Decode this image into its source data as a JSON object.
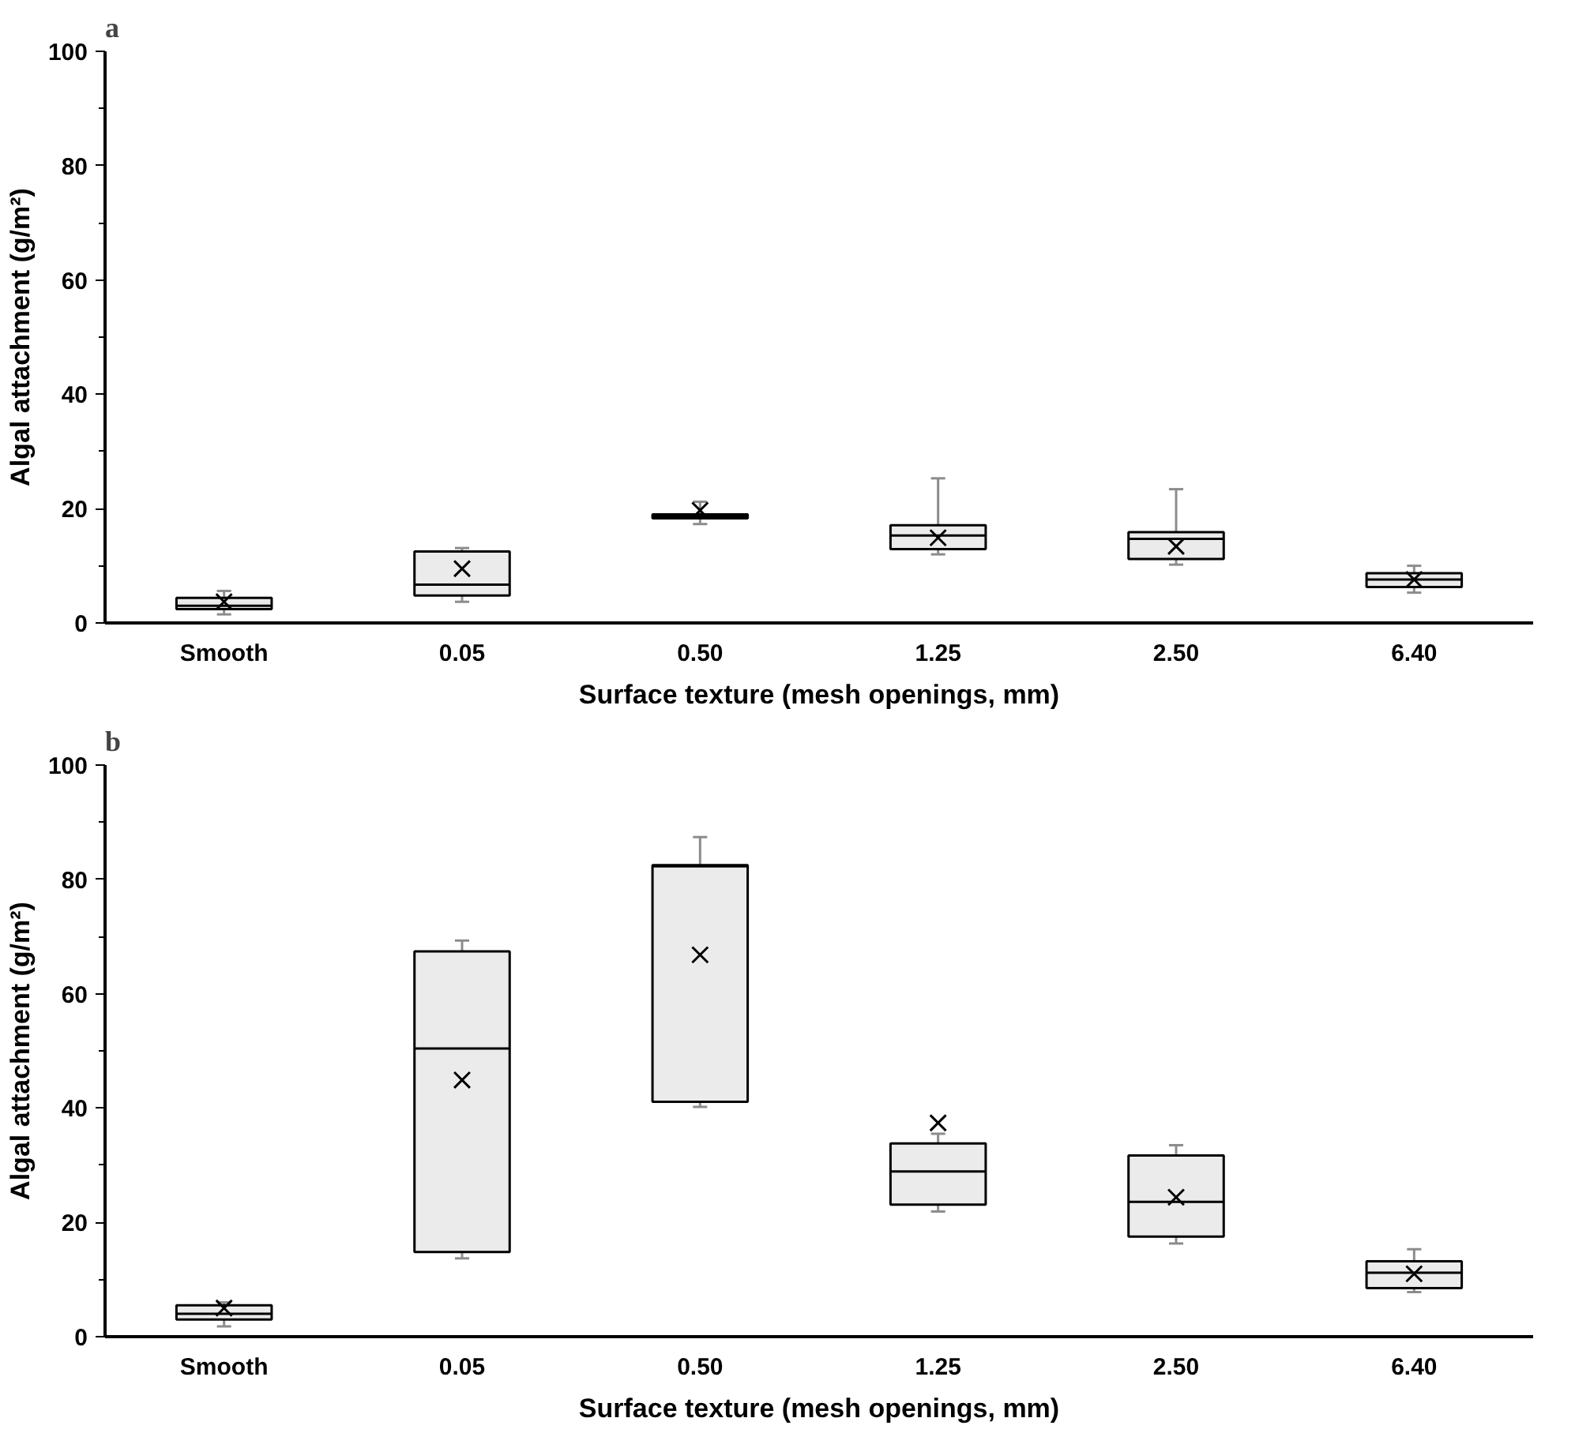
{
  "chart_data": [
    {
      "type": "box",
      "title": "a",
      "xlabel": "Surface texture (mesh openings, mm)",
      "ylabel": "Algal attachment (g/m²)",
      "categories": [
        "Smooth",
        "0.05",
        "0.50",
        "1.25",
        "2.50",
        "6.40"
      ],
      "ylim": [
        0,
        100
      ],
      "yticks": [
        0,
        {
          "value": 10,
          "label": null
        },
        20,
        {
          "value": 30,
          "label": null
        },
        40,
        {
          "value": 50,
          "label": null
        },
        60,
        {
          "value": 70,
          "label": null
        },
        80,
        {
          "value": 90,
          "label": null
        },
        100
      ],
      "grid": false,
      "marker": "cross",
      "series": [
        {
          "color": "#ebebeb",
          "boxes": [
            {
              "low": 1.5,
              "q1": 2.4,
              "median": 3.0,
              "q3": 4.4,
              "high": 5.6,
              "mean": 3.7
            },
            {
              "low": 3.7,
              "q1": 4.8,
              "median": 6.7,
              "q3": 12.5,
              "high": 13.1,
              "mean": 9.5
            },
            {
              "low": 17.3,
              "q1": 18.3,
              "median": 18.7,
              "q3": 19.0,
              "high": 21.2,
              "mean": 19.7
            },
            {
              "low": 12.0,
              "q1": 12.9,
              "median": 15.3,
              "q3": 17.1,
              "high": 25.3,
              "mean": 14.9
            },
            {
              "low": 10.2,
              "q1": 11.2,
              "median": 14.7,
              "q3": 15.9,
              "high": 23.4,
              "mean": 13.4
            },
            {
              "low": 5.3,
              "q1": 6.3,
              "median": 7.6,
              "q3": 8.7,
              "high": 10.0,
              "mean": 7.6
            }
          ]
        }
      ]
    },
    {
      "type": "box",
      "title": "b",
      "xlabel": "Surface texture (mesh openings, mm)",
      "ylabel": "Algal attachment (g/m²)",
      "categories": [
        "Smooth",
        "0.05",
        "0.50",
        "1.25",
        "2.50",
        "6.40"
      ],
      "ylim": [
        0,
        100
      ],
      "yticks": [
        0,
        {
          "value": 10,
          "label": null
        },
        20,
        {
          "value": 30,
          "label": null
        },
        40,
        {
          "value": 50,
          "label": null
        },
        60,
        {
          "value": 70,
          "label": null
        },
        80,
        {
          "value": 90,
          "label": null
        },
        100
      ],
      "grid": false,
      "marker": "cross",
      "series": [
        {
          "color": "#ebebeb",
          "boxes": [
            {
              "low": 1.8,
              "q1": 3.0,
              "median": 4.0,
              "q3": 5.5,
              "high": 6.0,
              "mean": 5.0
            },
            {
              "low": 13.7,
              "q1": 14.8,
              "median": 50.4,
              "q3": 67.4,
              "high": 69.3,
              "mean": 44.9
            },
            {
              "low": 40.2,
              "q1": 41.1,
              "median": 82.3,
              "q3": 82.5,
              "high": 87.4,
              "mean": 66.8
            },
            {
              "low": 21.9,
              "q1": 23.1,
              "median": 28.9,
              "q3": 33.8,
              "high": 35.5,
              "mean": 37.4
            },
            {
              "low": 16.3,
              "q1": 17.5,
              "median": 23.6,
              "q3": 31.7,
              "high": 33.5,
              "mean": 24.4
            },
            {
              "low": 7.8,
              "q1": 8.5,
              "median": 11.2,
              "q3": 13.2,
              "high": 15.3,
              "mean": 11.0
            }
          ]
        }
      ]
    }
  ]
}
